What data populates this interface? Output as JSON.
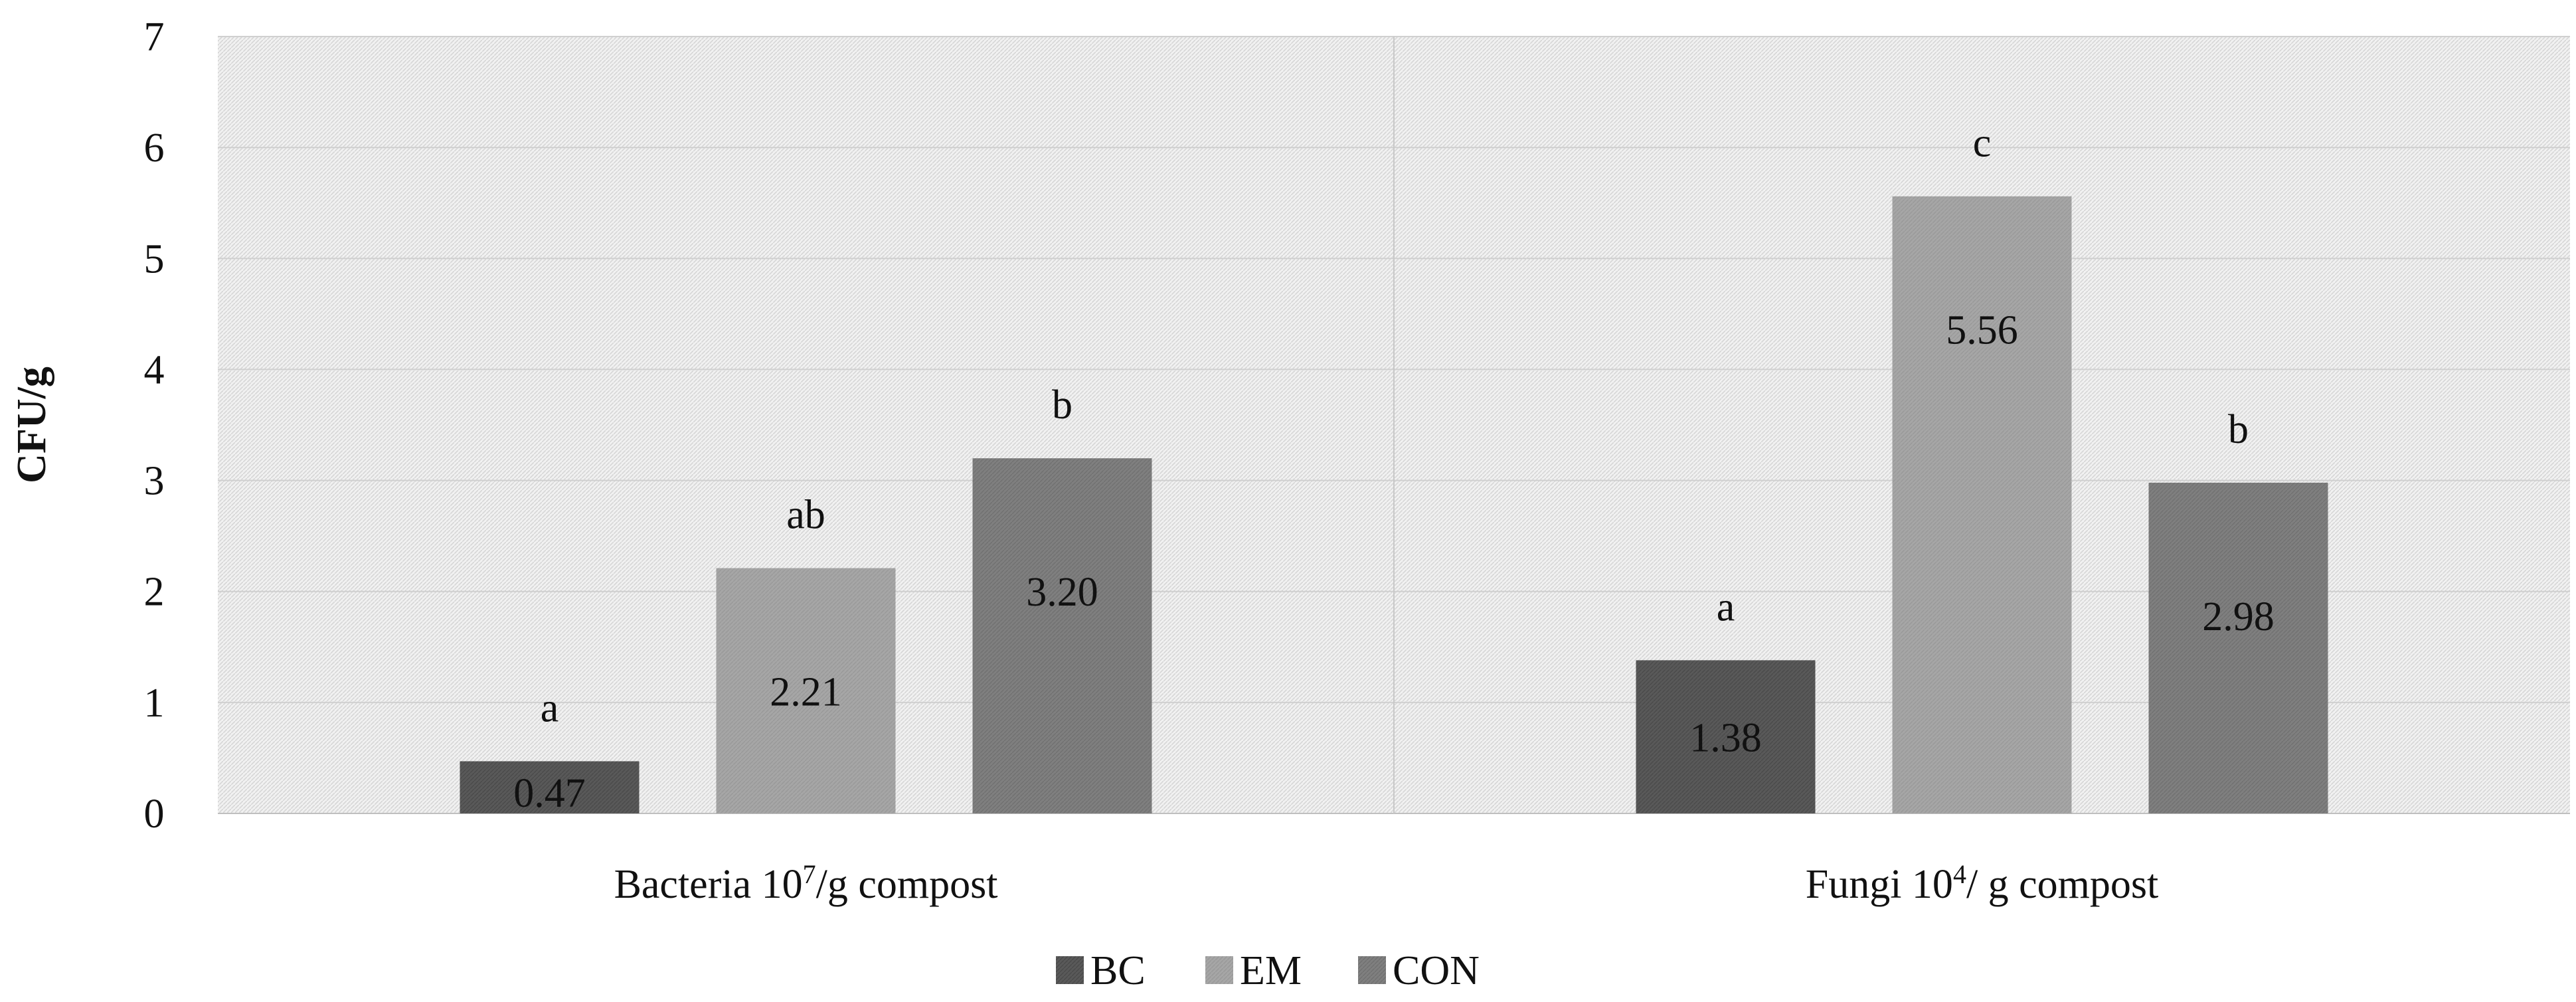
{
  "chart_data": {
    "type": "bar",
    "ylabel": "CFU/g",
    "xlabel": "",
    "ylim": [
      0,
      7
    ],
    "yticks": [
      "0",
      "1",
      "2",
      "3",
      "4",
      "5",
      "6",
      "7"
    ],
    "grid": true,
    "legend_position": "bottom",
    "categories": [
      {
        "name": "Bacteria 10",
        "sup": "7",
        "rest": "/g compost"
      },
      {
        "name": "Fungi 10",
        "sup": "4",
        "rest": "/ g compost"
      }
    ],
    "series": [
      {
        "name": "BC",
        "color": "#595959",
        "values": [
          0.47,
          1.38
        ],
        "value_labels": [
          "0.47",
          "1.38"
        ],
        "sig_labels": [
          "a",
          "a"
        ]
      },
      {
        "name": "EM",
        "color": "#a6a6a6",
        "values": [
          2.21,
          5.56
        ],
        "value_labels": [
          "2.21",
          "5.56"
        ],
        "sig_labels": [
          "ab",
          "c"
        ]
      },
      {
        "name": "CON",
        "color": "#7f7f7f",
        "values": [
          3.2,
          2.98
        ],
        "value_labels": [
          "3.20",
          "2.98"
        ],
        "sig_labels": [
          "b",
          "b"
        ]
      }
    ]
  }
}
